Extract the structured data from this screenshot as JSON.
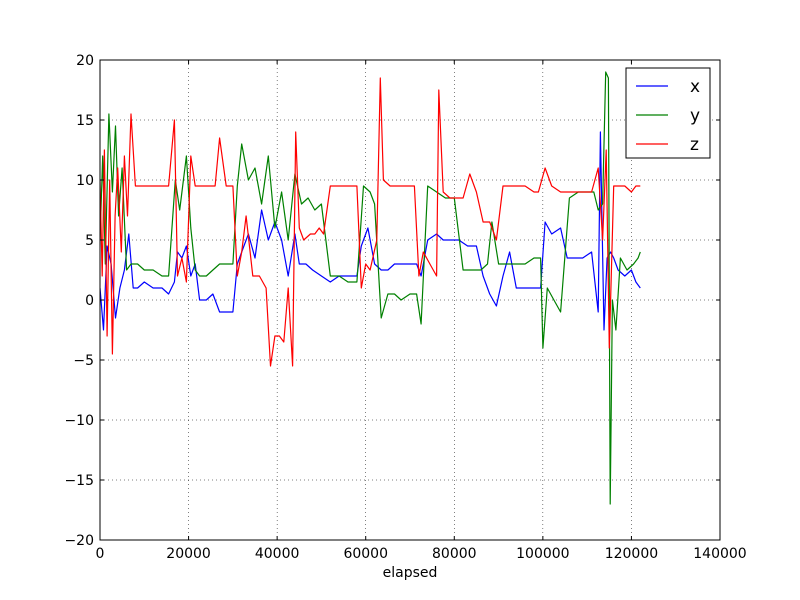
{
  "chart_data": {
    "type": "line",
    "title": "",
    "xlabel": "elapsed",
    "ylabel": "",
    "xlim": [
      0,
      140000
    ],
    "ylim": [
      -20,
      20
    ],
    "x_ticks": [
      0,
      20000,
      40000,
      60000,
      80000,
      100000,
      120000,
      140000
    ],
    "x_tick_labels": [
      "0",
      "20000",
      "40000",
      "60000",
      "80000",
      "100000",
      "120000",
      "140000"
    ],
    "y_ticks": [
      -20,
      -15,
      -10,
      -5,
      0,
      5,
      10,
      15,
      20
    ],
    "y_tick_labels": [
      "−20",
      "−15",
      "−10",
      "−5",
      "0",
      "5",
      "10",
      "15",
      "20"
    ],
    "grid": true,
    "legend_position": "top-right",
    "series": [
      {
        "name": "x",
        "color": "#0000ff",
        "x": [
          0,
          800,
          1600,
          2500,
          3500,
          4500,
          5500,
          6500,
          7500,
          8500,
          10000,
          12000,
          14000,
          15500,
          16800,
          17500,
          18500,
          19500,
          20500,
          21500,
          22500,
          24000,
          25500,
          27000,
          28500,
          30000,
          31000,
          32000,
          33500,
          35000,
          36500,
          38000,
          39500,
          41000,
          42500,
          44000,
          45000,
          46500,
          48000,
          50000,
          52000,
          54000,
          56000,
          58000,
          59000,
          60500,
          62000,
          63500,
          65000,
          66500,
          68000,
          70000,
          71500,
          72500,
          74000,
          76000,
          77500,
          79000,
          81000,
          83000,
          85000,
          86500,
          88000,
          89500,
          91000,
          92500,
          94000,
          96000,
          98000,
          99500,
          100500,
          102000,
          104000,
          105500,
          107000,
          109000,
          111000,
          112500,
          113000,
          113800,
          114500,
          115300,
          116000,
          117000,
          118500,
          120000,
          121000,
          122000
        ],
        "y": [
          1.0,
          -2.5,
          4.5,
          3.0,
          -1.5,
          1.0,
          2.5,
          5.5,
          1.0,
          1.0,
          1.5,
          1.0,
          1.0,
          0.5,
          1.5,
          4.0,
          3.5,
          4.5,
          2.0,
          3.0,
          0.0,
          0.0,
          0.5,
          -1.0,
          -1.0,
          -1.0,
          3.0,
          4.0,
          5.5,
          3.5,
          7.5,
          5.0,
          6.5,
          5.0,
          2.0,
          5.5,
          3.0,
          3.0,
          2.5,
          2.0,
          1.5,
          2.0,
          2.0,
          2.0,
          4.5,
          6.0,
          3.0,
          2.5,
          2.5,
          3.0,
          3.0,
          3.0,
          3.0,
          2.0,
          5.0,
          5.5,
          5.0,
          5.0,
          5.0,
          4.5,
          4.5,
          2.0,
          0.5,
          -0.5,
          2.0,
          4.0,
          1.0,
          1.0,
          1.0,
          1.0,
          6.5,
          5.5,
          6.0,
          3.5,
          3.5,
          3.5,
          4.0,
          -1.0,
          14.0,
          -2.5,
          3.5,
          4.0,
          3.5,
          2.5,
          2.0,
          2.5,
          1.5,
          1.0
        ]
      },
      {
        "name": "y",
        "color": "#008000",
        "x": [
          0,
          600,
          1200,
          2000,
          2800,
          3500,
          4200,
          5000,
          6000,
          7000,
          8500,
          10000,
          12000,
          14000,
          15500,
          17000,
          18000,
          19500,
          20500,
          21500,
          22500,
          24000,
          25500,
          27000,
          28500,
          30000,
          31000,
          32000,
          33500,
          35000,
          36500,
          38000,
          39500,
          41000,
          42500,
          44000,
          45500,
          47000,
          48500,
          50000,
          52000,
          54000,
          56000,
          58000,
          59500,
          61000,
          62000,
          63500,
          65000,
          66500,
          68000,
          70000,
          71500,
          72500,
          74000,
          76000,
          78000,
          80000,
          82000,
          84000,
          86000,
          87500,
          88500,
          90000,
          92000,
          94000,
          96000,
          98000,
          99500,
          100000,
          101000,
          102500,
          104000,
          106000,
          108000,
          110000,
          111500,
          112500,
          113500,
          114200,
          114800,
          115200,
          115700,
          116500,
          117500,
          119000,
          120500,
          121500,
          122000
        ],
        "y": [
          5.0,
          12.0,
          3.0,
          15.5,
          9.0,
          14.5,
          7.0,
          11.0,
          2.5,
          3.0,
          3.0,
          2.5,
          2.5,
          2.0,
          2.0,
          10.0,
          7.5,
          12.0,
          6.0,
          2.5,
          2.0,
          2.0,
          2.5,
          3.0,
          3.0,
          3.0,
          9.5,
          13.0,
          10.0,
          11.0,
          8.0,
          12.0,
          6.0,
          9.0,
          5.0,
          10.5,
          8.0,
          8.5,
          7.5,
          8.0,
          2.0,
          2.0,
          1.5,
          1.5,
          9.5,
          9.0,
          8.0,
          -1.5,
          0.5,
          0.5,
          0.0,
          0.5,
          0.5,
          -2.0,
          9.5,
          9.0,
          8.5,
          8.5,
          2.5,
          2.5,
          2.5,
          3.0,
          6.5,
          3.0,
          3.0,
          3.0,
          3.0,
          3.5,
          3.5,
          -4.0,
          1.0,
          0.0,
          -1.0,
          8.5,
          9.0,
          9.0,
          9.0,
          7.5,
          8.0,
          19.0,
          18.5,
          -17.0,
          0.0,
          -2.5,
          3.5,
          2.5,
          3.0,
          3.5,
          4.0
        ]
      },
      {
        "name": "z",
        "color": "#ff0000",
        "x": [
          0,
          500,
          1000,
          1600,
          2200,
          2800,
          3400,
          4000,
          4800,
          5500,
          6200,
          7000,
          8000,
          9500,
          11000,
          12500,
          14000,
          15500,
          16800,
          17500,
          18500,
          19500,
          20500,
          21500,
          23000,
          24500,
          26000,
          27000,
          28500,
          30000,
          31000,
          32000,
          33000,
          34500,
          36000,
          37500,
          38500,
          39500,
          40500,
          41500,
          42500,
          43500,
          44200,
          45000,
          46000,
          47500,
          48500,
          49500,
          50500,
          52000,
          54000,
          56000,
          58000,
          59000,
          60000,
          61000,
          62500,
          63300,
          64000,
          65500,
          67000,
          69000,
          71000,
          72000,
          73000,
          74500,
          76000,
          76500,
          77500,
          79000,
          80500,
          82000,
          83500,
          85000,
          86500,
          88000,
          89500,
          91000,
          92500,
          94000,
          96000,
          98000,
          99000,
          100500,
          102000,
          104000,
          105500,
          107000,
          109000,
          111000,
          112500,
          113500,
          114300,
          115000,
          116000,
          117000,
          118500,
          120000,
          121000,
          122000
        ],
        "y": [
          10.0,
          2.0,
          12.5,
          -3.0,
          10.0,
          -4.5,
          7.0,
          11.0,
          4.0,
          12.0,
          7.0,
          15.5,
          9.5,
          9.5,
          9.5,
          9.5,
          9.5,
          9.5,
          15.0,
          2.0,
          3.5,
          1.5,
          12.0,
          9.5,
          9.5,
          9.5,
          9.5,
          13.5,
          9.5,
          9.5,
          2.0,
          4.0,
          7.0,
          2.0,
          2.0,
          1.0,
          -5.5,
          -3.0,
          -3.0,
          -3.5,
          1.0,
          -5.5,
          14.0,
          6.0,
          5.0,
          5.5,
          5.5,
          6.0,
          5.5,
          9.5,
          9.5,
          9.5,
          9.5,
          1.0,
          3.0,
          2.5,
          5.0,
          18.5,
          10.0,
          9.5,
          9.5,
          9.5,
          9.5,
          2.0,
          4.0,
          3.0,
          2.0,
          17.5,
          9.0,
          8.5,
          8.5,
          8.5,
          10.5,
          9.0,
          6.5,
          6.5,
          5.0,
          9.5,
          9.5,
          9.5,
          9.5,
          9.0,
          9.0,
          11.0,
          9.5,
          9.0,
          9.0,
          9.0,
          9.0,
          9.0,
          11.0,
          5.0,
          12.5,
          -4.0,
          9.5,
          9.5,
          9.5,
          9.0,
          9.5,
          9.5
        ]
      }
    ]
  }
}
